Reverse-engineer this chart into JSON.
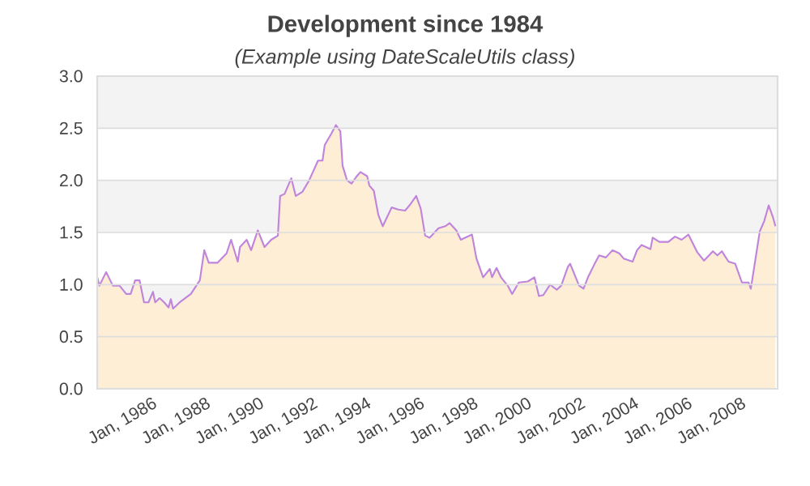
{
  "chart_data": {
    "type": "area",
    "title": "Development since 1984",
    "subtitle": "(Example using DateScaleUtils class)",
    "x": [
      "1984-01",
      "1984-02",
      "1984-05",
      "1984-08",
      "1984-11",
      "1985-02",
      "1985-04",
      "1985-06",
      "1985-08",
      "1985-10",
      "1985-12",
      "1986-02",
      "1986-03",
      "1986-05",
      "1986-07",
      "1986-09",
      "1986-10",
      "1986-11",
      "1987-02",
      "1987-07",
      "1987-11",
      "1988-01",
      "1988-03",
      "1988-07",
      "1988-11",
      "1989-01",
      "1989-04",
      "1989-05",
      "1989-08",
      "1989-10",
      "1990-01",
      "1990-04",
      "1990-07",
      "1990-10",
      "1990-11",
      "1991-01",
      "1991-04",
      "1991-06",
      "1991-09",
      "1991-12",
      "1992-04",
      "1992-06",
      "1992-07",
      "1992-10",
      "1992-12",
      "1993-02",
      "1993-03",
      "1993-05",
      "1993-07",
      "1993-09",
      "1993-11",
      "1994-02",
      "1994-03",
      "1994-05",
      "1994-07",
      "1994-09",
      "1995-01",
      "1995-04",
      "1995-07",
      "1995-09",
      "1995-12",
      "1996-02",
      "1996-04",
      "1996-06",
      "1996-10",
      "1997-01",
      "1997-03",
      "1997-06",
      "1997-08",
      "1998-01",
      "1998-03",
      "1998-06",
      "1998-09",
      "1998-10",
      "1998-12",
      "1999-02",
      "1999-05",
      "1999-07",
      "1999-10",
      "2000-02",
      "2000-05",
      "2000-07",
      "2000-09",
      "2000-12",
      "2001-03",
      "2001-05",
      "2001-08",
      "2001-09",
      "2002-01",
      "2002-03",
      "2002-05",
      "2002-08",
      "2002-10",
      "2003-01",
      "2003-04",
      "2003-07",
      "2003-09",
      "2004-01",
      "2004-03",
      "2004-05",
      "2004-09",
      "2004-10",
      "2005-01",
      "2005-05",
      "2005-08",
      "2005-11",
      "2006-02",
      "2006-06",
      "2006-09",
      "2007-01",
      "2007-03",
      "2007-05",
      "2007-08",
      "2007-11",
      "2008-02",
      "2008-05",
      "2008-06",
      "2008-10",
      "2008-12",
      "2009-02",
      "2009-04",
      "2009-05"
    ],
    "series": [
      {
        "color": "#fdeed5",
        "values": [
          1.07,
          0.99,
          1.12,
          0.99,
          0.99,
          0.91,
          0.91,
          1.04,
          1.04,
          0.83,
          0.83,
          0.93,
          0.83,
          0.87,
          0.83,
          0.78,
          0.86,
          0.77,
          0.83,
          0.91,
          1.04,
          1.33,
          1.21,
          1.21,
          1.3,
          1.43,
          1.22,
          1.36,
          1.43,
          1.33,
          1.52,
          1.36,
          1.43,
          1.47,
          1.85,
          1.87,
          2.02,
          1.85,
          1.89,
          2.0,
          2.19,
          2.19,
          2.34,
          2.45,
          2.53,
          2.47,
          2.14,
          2.0,
          1.97,
          2.03,
          2.08,
          2.04,
          1.95,
          1.9,
          1.67,
          1.56,
          1.74,
          1.72,
          1.71,
          1.76,
          1.85,
          1.73,
          1.47,
          1.45,
          1.54,
          1.56,
          1.59,
          1.52,
          1.43,
          1.48,
          1.25,
          1.07,
          1.15,
          1.07,
          1.16,
          1.07,
          0.99,
          0.91,
          1.02,
          1.03,
          1.07,
          0.89,
          0.9,
          1.0,
          0.95,
          0.99,
          1.17,
          1.2,
          0.99,
          0.96,
          1.07,
          1.2,
          1.28,
          1.26,
          1.33,
          1.3,
          1.25,
          1.22,
          1.33,
          1.38,
          1.34,
          1.45,
          1.41,
          1.41,
          1.46,
          1.43,
          1.48,
          1.31,
          1.23,
          1.32,
          1.28,
          1.32,
          1.22,
          1.2,
          1.02,
          1.02,
          0.96,
          1.51,
          1.61,
          1.76,
          1.64,
          1.56
        ]
      }
    ],
    "xlim": [
      "1984-01",
      "2009-06"
    ],
    "xticks": [
      {
        "value": "1986-01",
        "label": "Jan, 1986"
      },
      {
        "value": "1988-01",
        "label": "Jan, 1988"
      },
      {
        "value": "1990-01",
        "label": "Jan, 1990"
      },
      {
        "value": "1992-01",
        "label": "Jan, 1992"
      },
      {
        "value": "1994-01",
        "label": "Jan, 1994"
      },
      {
        "value": "1996-01",
        "label": "Jan, 1996"
      },
      {
        "value": "1998-01",
        "label": "Jan, 1998"
      },
      {
        "value": "2000-01",
        "label": "Jan, 2000"
      },
      {
        "value": "2002-01",
        "label": "Jan, 2002"
      },
      {
        "value": "2004-01",
        "label": "Jan, 2004"
      },
      {
        "value": "2006-01",
        "label": "Jan, 2006"
      },
      {
        "value": "2008-01",
        "label": "Jan, 2008"
      }
    ],
    "ylim": [
      0,
      3
    ],
    "yticks": [
      {
        "value": 0,
        "label": "0.0"
      },
      0.5,
      {
        "value": 1,
        "label": "1.0"
      },
      1.5,
      {
        "value": 2,
        "label": "2.0"
      },
      2.5,
      {
        "value": 3,
        "label": "3.0"
      }
    ],
    "grid": "y"
  }
}
